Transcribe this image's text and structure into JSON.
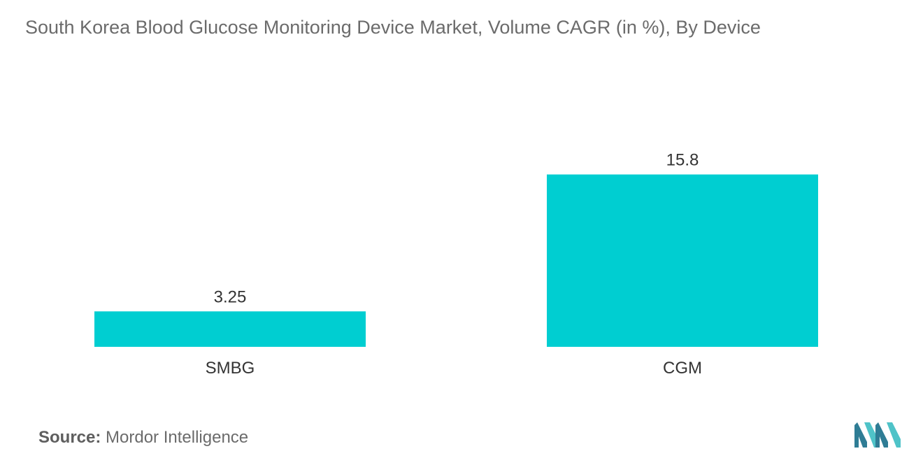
{
  "title": "South Korea Blood Glucose Monitoring Device Market, Volume CAGR (in %),  By Device",
  "source": {
    "label": "Source:",
    "value": "Mordor Intelligence"
  },
  "colors": {
    "bar": "#00CED1",
    "text": "#333333",
    "title": "#6b6b6b",
    "logo_dark": "#2f7d95",
    "logo_light": "#4fc3c8"
  },
  "logo_icon": "mordor-intelligence-logo-icon",
  "chart_data": {
    "type": "bar",
    "categories": [
      "SMBG",
      "CGM"
    ],
    "values": [
      3.25,
      15.8
    ],
    "data_labels": [
      "3.25",
      "15.8"
    ],
    "title": "South Korea Blood Glucose Monitoring Device Market, Volume CAGR (in %),  By Device",
    "xlabel": "",
    "ylabel": "",
    "ylim": [
      0,
      20
    ],
    "grid": false,
    "legend": "none"
  }
}
